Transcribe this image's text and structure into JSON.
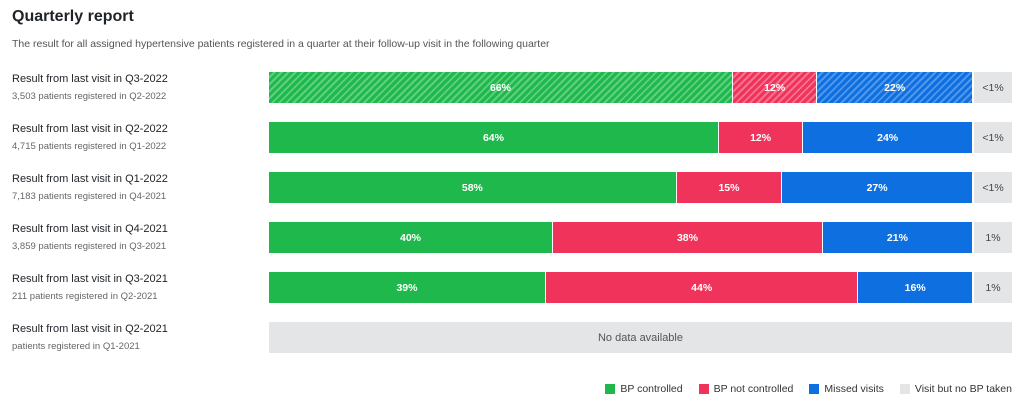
{
  "report": {
    "title": "Quarterly report",
    "subtitle": "The result for all assigned hypertensive patients registered in a quarter at their follow-up visit in the following quarter"
  },
  "chart_data": {
    "type": "bar",
    "orientation": "horizontal-stacked-100",
    "categories": [
      "Result from last visit in Q3-2022",
      "Result from last visit in Q2-2022",
      "Result from last visit in Q1-2022",
      "Result from last visit in Q4-2021",
      "Result from last visit in Q3-2021",
      "Result from last visit in Q2-2021"
    ],
    "subtitles": [
      "3,503 patients registered in Q2-2022",
      "4,715 patients registered in Q1-2022",
      "7,183 patients registered in Q4-2021",
      "3,859 patients registered in Q3-2021",
      "211 patients registered in Q2-2021",
      "patients registered in Q1-2021"
    ],
    "series": [
      {
        "name": "BP controlled",
        "color": "#1fb84c",
        "values": [
          66,
          64,
          58,
          40,
          39,
          null
        ],
        "labels": [
          "66%",
          "64%",
          "58%",
          "40%",
          "39%",
          ""
        ]
      },
      {
        "name": "BP not controlled",
        "color": "#f0335a",
        "values": [
          12,
          12,
          15,
          38,
          44,
          null
        ],
        "labels": [
          "12%",
          "12%",
          "15%",
          "38%",
          "44%",
          ""
        ]
      },
      {
        "name": "Missed visits",
        "color": "#0e70e0",
        "values": [
          22,
          24,
          27,
          21,
          16,
          null
        ],
        "labels": [
          "22%",
          "24%",
          "27%",
          "21%",
          "16%",
          ""
        ]
      },
      {
        "name": "Visit but no BP taken",
        "color": "#e3e5e7",
        "values": [
          0.5,
          0.5,
          0.5,
          1,
          1,
          null
        ],
        "labels": [
          "<1%",
          "<1%",
          "<1%",
          "1%",
          "1%",
          ""
        ]
      }
    ],
    "hatched_rows": [
      0
    ],
    "no_data_rows": [
      5
    ],
    "no_data_text": "No data available",
    "legend_position": "bottom-right"
  }
}
